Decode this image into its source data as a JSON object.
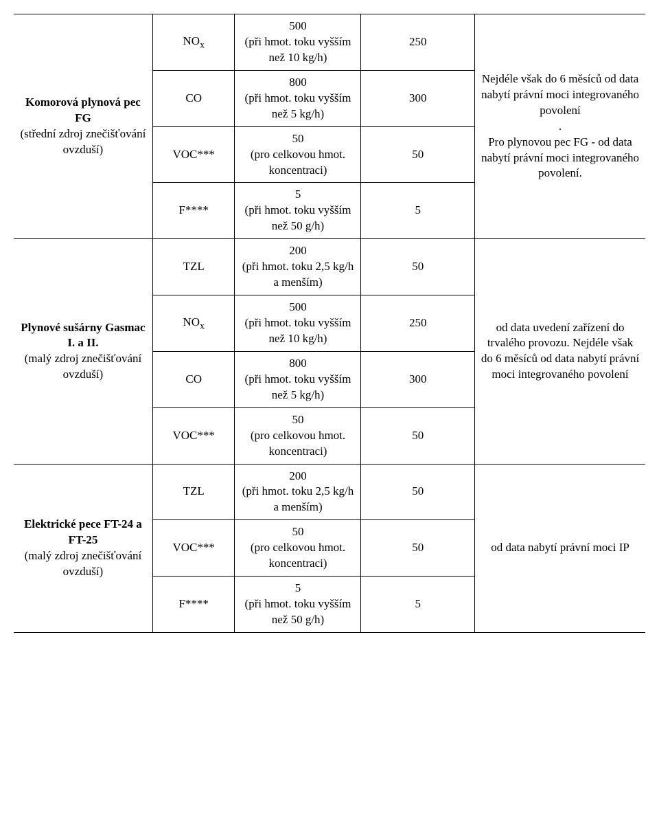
{
  "sections": [
    {
      "label_bold": "Komorová plynová pec FG",
      "label_rest": "(střední zdroj znečišťování ovzduší)",
      "rows": [
        {
          "pollutant_html": "NO<span class='sub'>x</span>",
          "spec_html": "500<br>(při hmot. toku vyšším než 10 kg/h)",
          "value": "250"
        },
        {
          "pollutant_html": "CO",
          "spec_html": "800<br>(při hmot. toku vyšším než 5 kg/h)",
          "value": "300"
        },
        {
          "pollutant_html": "VOC***",
          "spec_html": "50<br>(pro celkovou hmot. koncentraci)",
          "value": "50"
        },
        {
          "pollutant_html": "F****",
          "spec_html": "5<br>(při hmot. toku vyšším než 50 g/h)",
          "value": "5"
        }
      ],
      "note_html": "Nejdéle však do 6 měsíců od data nabytí právní moci integrovaného povolení<br>.<br>Pro plynovou pec FG - od data nabytí právní moci integrovaného povolení."
    },
    {
      "label_bold": "Plynové sušárny Gasmac I. a II.",
      "label_rest": "(malý zdroj znečišťování ovzduší)",
      "rows": [
        {
          "pollutant_html": "TZL",
          "spec_html": "200<br>(při hmot. toku 2,5 kg/h a menším)",
          "value": "50"
        },
        {
          "pollutant_html": "NO<span class='sub'>x</span>",
          "spec_html": "500<br>(při hmot. toku vyšším než 10 kg/h)",
          "value": "250"
        },
        {
          "pollutant_html": "CO",
          "spec_html": "800<br>(při hmot. toku vyšším než 5 kg/h)",
          "value": "300"
        },
        {
          "pollutant_html": "VOC***",
          "spec_html": "50<br>(pro celkovou hmot. koncentraci)",
          "value": "50"
        }
      ],
      "note_html": "od data uvedení zařízení do trvalého provozu. Nejdéle však do 6 měsíců od data nabytí právní moci integrovaného povolení"
    },
    {
      "label_bold": "Elektrické pece FT-24 a FT-25",
      "label_rest": "(malý zdroj znečišťování ovzduší)",
      "rows": [
        {
          "pollutant_html": "TZL",
          "spec_html": "200<br>(při hmot. toku 2,5 kg/h a menším)",
          "value": "50"
        },
        {
          "pollutant_html": "VOC***",
          "spec_html": "50<br>(pro celkovou hmot. koncentraci)",
          "value": "50"
        },
        {
          "pollutant_html": "F****",
          "spec_html": "5<br>(při hmot. toku vyšším než 50 g/h)",
          "value": "5"
        }
      ],
      "note_html": "od data nabytí právní moci IP"
    }
  ],
  "styling": {
    "background_color": "#ffffff",
    "text_color": "#000000",
    "border_color": "#000000",
    "font_family": "Times New Roman",
    "font_size_pt": 13,
    "col_widths_pct": [
      22,
      13,
      20,
      18,
      27
    ]
  }
}
